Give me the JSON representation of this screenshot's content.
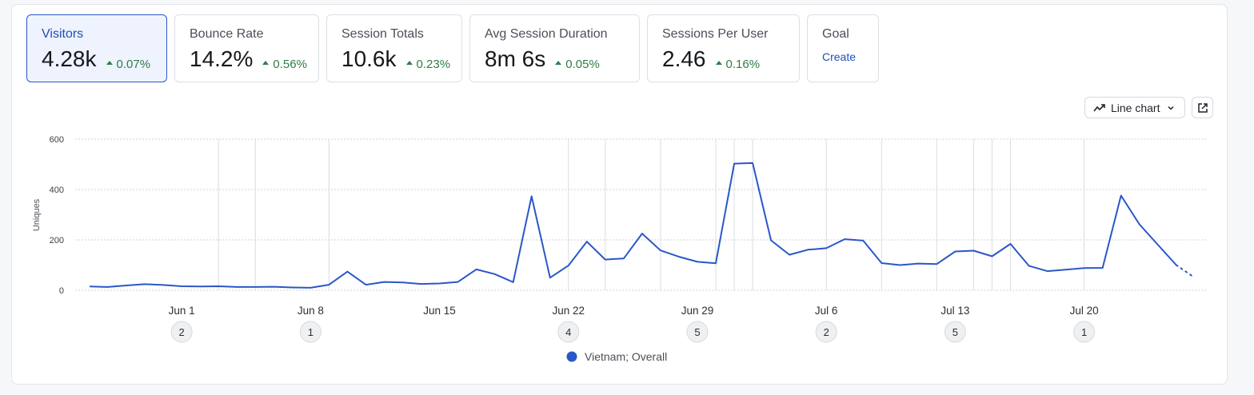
{
  "metrics": [
    {
      "label": "Visitors",
      "value": "4.28k",
      "delta": "0.07%",
      "active": true
    },
    {
      "label": "Bounce Rate",
      "value": "14.2%",
      "delta": "0.56%"
    },
    {
      "label": "Session Totals",
      "value": "10.6k",
      "delta": "0.23%"
    },
    {
      "label": "Avg Session Duration",
      "value": "8m 6s",
      "delta": "0.05%"
    },
    {
      "label": "Sessions Per User",
      "value": "2.46",
      "delta": "0.16%"
    }
  ],
  "goal": {
    "label": "Goal",
    "link": "Create"
  },
  "toolbar": {
    "chart_type_label": "Line chart",
    "chart_type_icon": "trend-line-icon",
    "open_icon": "external-link-icon"
  },
  "colors": {
    "accent": "#2a57c7",
    "positive": "#2f7d46",
    "series": "#2a57c7"
  },
  "annotations": [
    {
      "x": "Jun 1",
      "count": "2"
    },
    {
      "x": "Jun 8",
      "count": "1"
    },
    {
      "x": "Jun 22",
      "count": "4"
    },
    {
      "x": "Jun 29",
      "count": "5"
    },
    {
      "x": "Jul 6",
      "count": "2"
    },
    {
      "x": "Jul 13",
      "count": "5"
    },
    {
      "x": "Jul 20",
      "count": "1"
    }
  ],
  "chart_data": {
    "type": "line",
    "title": "",
    "xlabel": "",
    "ylabel": "Uniques",
    "ylim": [
      0,
      600
    ],
    "yticks": [
      0,
      200,
      400,
      600
    ],
    "x_start": "May 27",
    "xticks": [
      "Jun 1",
      "Jun 8",
      "Jun 15",
      "Jun 22",
      "Jun 29",
      "Jul 6",
      "Jul 13",
      "Jul 20"
    ],
    "grid": true,
    "legend_position": "bottom",
    "series": [
      {
        "name": "Vietnam; Overall",
        "values": [
          15,
          13,
          19,
          24,
          21,
          16,
          15,
          16,
          13,
          13,
          14,
          11,
          10,
          22,
          74,
          22,
          33,
          31,
          25,
          27,
          33,
          83,
          64,
          32,
          373,
          50,
          98,
          193,
          122,
          126,
          225,
          158,
          133,
          113,
          107,
          503,
          505,
          198,
          141,
          161,
          167,
          203,
          197,
          108,
          100,
          106,
          104,
          154,
          157,
          135,
          184,
          97,
          76,
          82,
          88,
          89,
          376,
          262,
          181,
          100
        ],
        "projected": [
          100,
          50
        ]
      }
    ],
    "event_lines": [
      "Jun 3",
      "Jun 5",
      "Jun 9",
      "Jun 22",
      "Jun 24",
      "Jun 27",
      "Jun 30",
      "Jul 1",
      "Jul 2",
      "Jul 6",
      "Jul 9",
      "Jul 12",
      "Jul 14",
      "Jul 15",
      "Jul 16",
      "Jul 20"
    ]
  }
}
